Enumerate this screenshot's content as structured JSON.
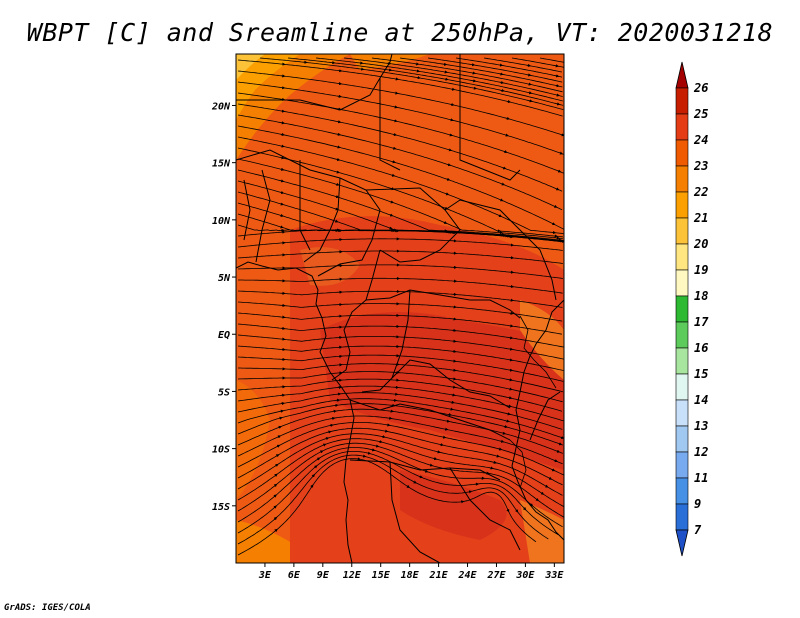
{
  "title": "WBPT [C] and Sreamline at 250hPa, VT: 2020031218",
  "credit": "GrADS: IGES/COLA",
  "map": {
    "lat_labels": [
      "20N",
      "15N",
      "10N",
      "5N",
      "EQ",
      "5S",
      "10S",
      "15S"
    ],
    "lat_values": [
      20,
      15,
      10,
      5,
      0,
      -5,
      -10,
      -15
    ],
    "lon_labels": [
      "3E",
      "6E",
      "9E",
      "12E",
      "15E",
      "18E",
      "21E",
      "24E",
      "27E",
      "30E",
      "33E"
    ],
    "lon_values": [
      3,
      6,
      9,
      12,
      15,
      18,
      21,
      24,
      27,
      30,
      33
    ],
    "lon_range": [
      0,
      34
    ],
    "lat_range": [
      -20,
      24.5
    ],
    "fill_color": "#e8401a",
    "dominant_range": "23-24 C"
  },
  "colorbar": {
    "labels": [
      "26",
      "25",
      "24",
      "23",
      "22",
      "21",
      "20",
      "19",
      "18",
      "17",
      "16",
      "15",
      "14",
      "13",
      "12",
      "11",
      "9",
      "7"
    ],
    "colors": [
      "#a50000",
      "#c81e00",
      "#e43c14",
      "#f05a00",
      "#f57f00",
      "#fba000",
      "#fcc238",
      "#ffe680",
      "#fff8c0",
      "#2db932",
      "#5ccb5c",
      "#a8e6a0",
      "#e0f6f0",
      "#c8e0fa",
      "#a0c8f0",
      "#78aaf0",
      "#4690e6",
      "#2a6ed7",
      "#1e50c8"
    ]
  }
}
